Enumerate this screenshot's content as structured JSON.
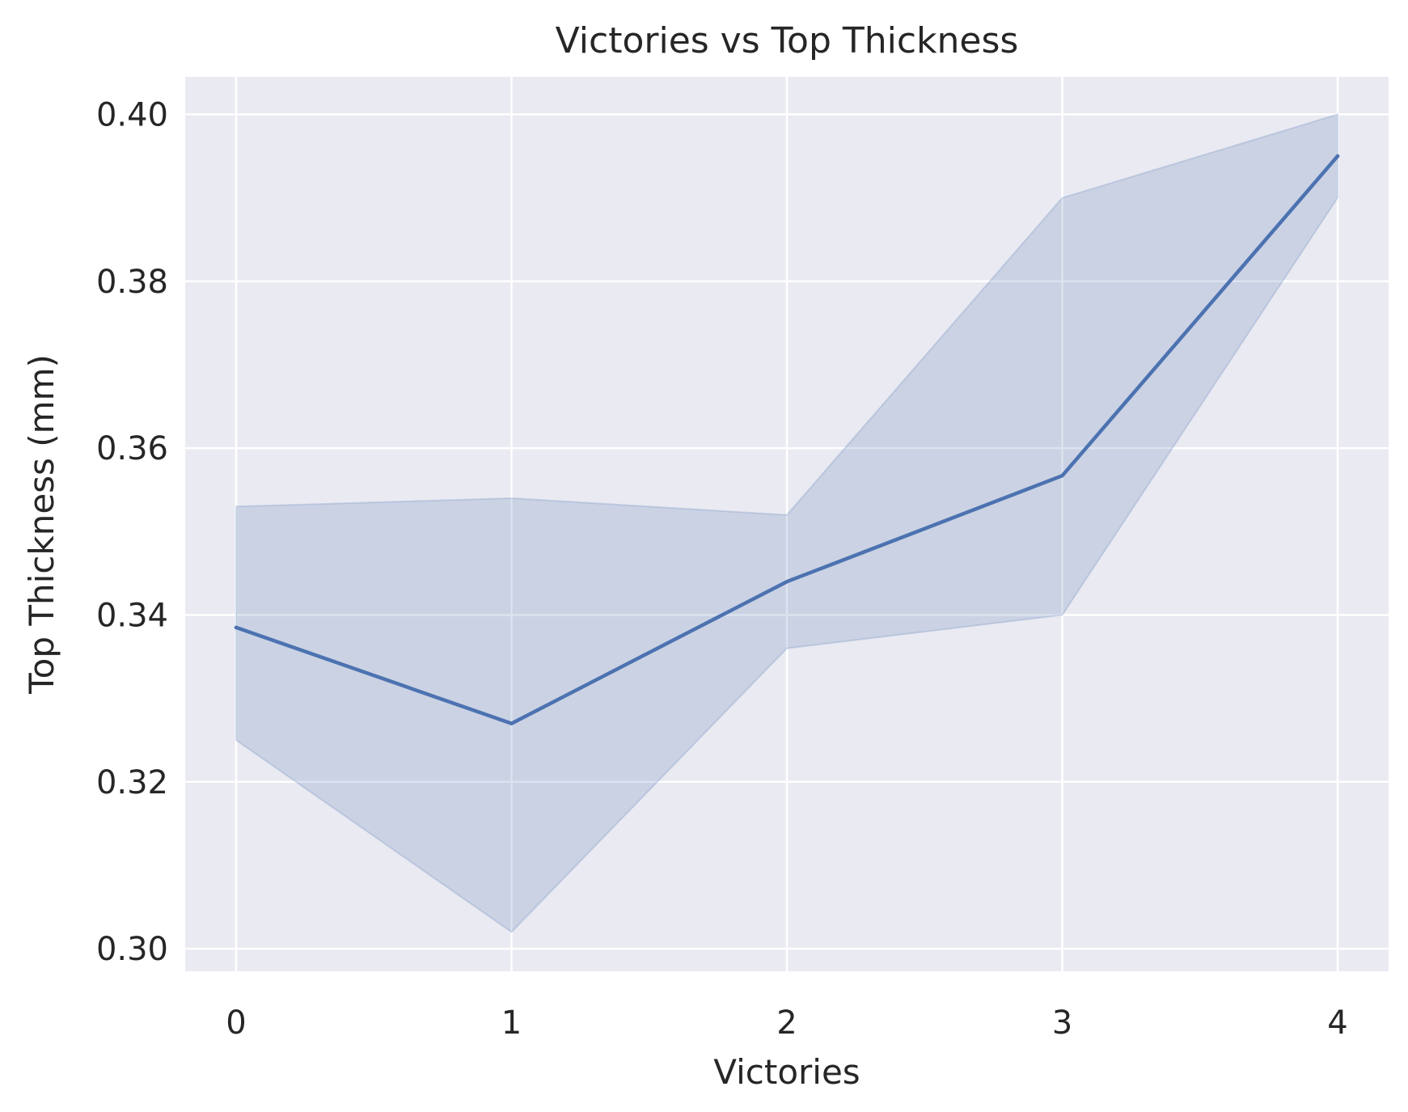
{
  "chart_data": {
    "type": "line",
    "title": "Victories vs Top Thickness",
    "xlabel": "Victories",
    "ylabel": "Top Thickness (mm)",
    "x": [
      0,
      1,
      2,
      3,
      4
    ],
    "series": [
      {
        "values": [
          0.3385,
          0.327,
          0.344,
          0.3567,
          0.395
        ],
        "ci_lower": [
          0.325,
          0.302,
          0.336,
          0.34,
          0.39
        ],
        "ci_upper": [
          0.353,
          0.354,
          0.352,
          0.39,
          0.4
        ]
      }
    ],
    "xlim": [
      -0.185,
      4.185
    ],
    "ylim": [
      0.2973,
      0.4045
    ],
    "xticks": [
      "0",
      "1",
      "2",
      "3",
      "4"
    ],
    "yticks": [
      "0.30",
      "0.32",
      "0.34",
      "0.36",
      "0.38",
      "0.40"
    ],
    "grid": true,
    "colors": {
      "line": "#4c72b0",
      "band": "#4c72b0",
      "background": "#eaeaf2",
      "grid": "#ffffff",
      "text": "#262626"
    }
  }
}
